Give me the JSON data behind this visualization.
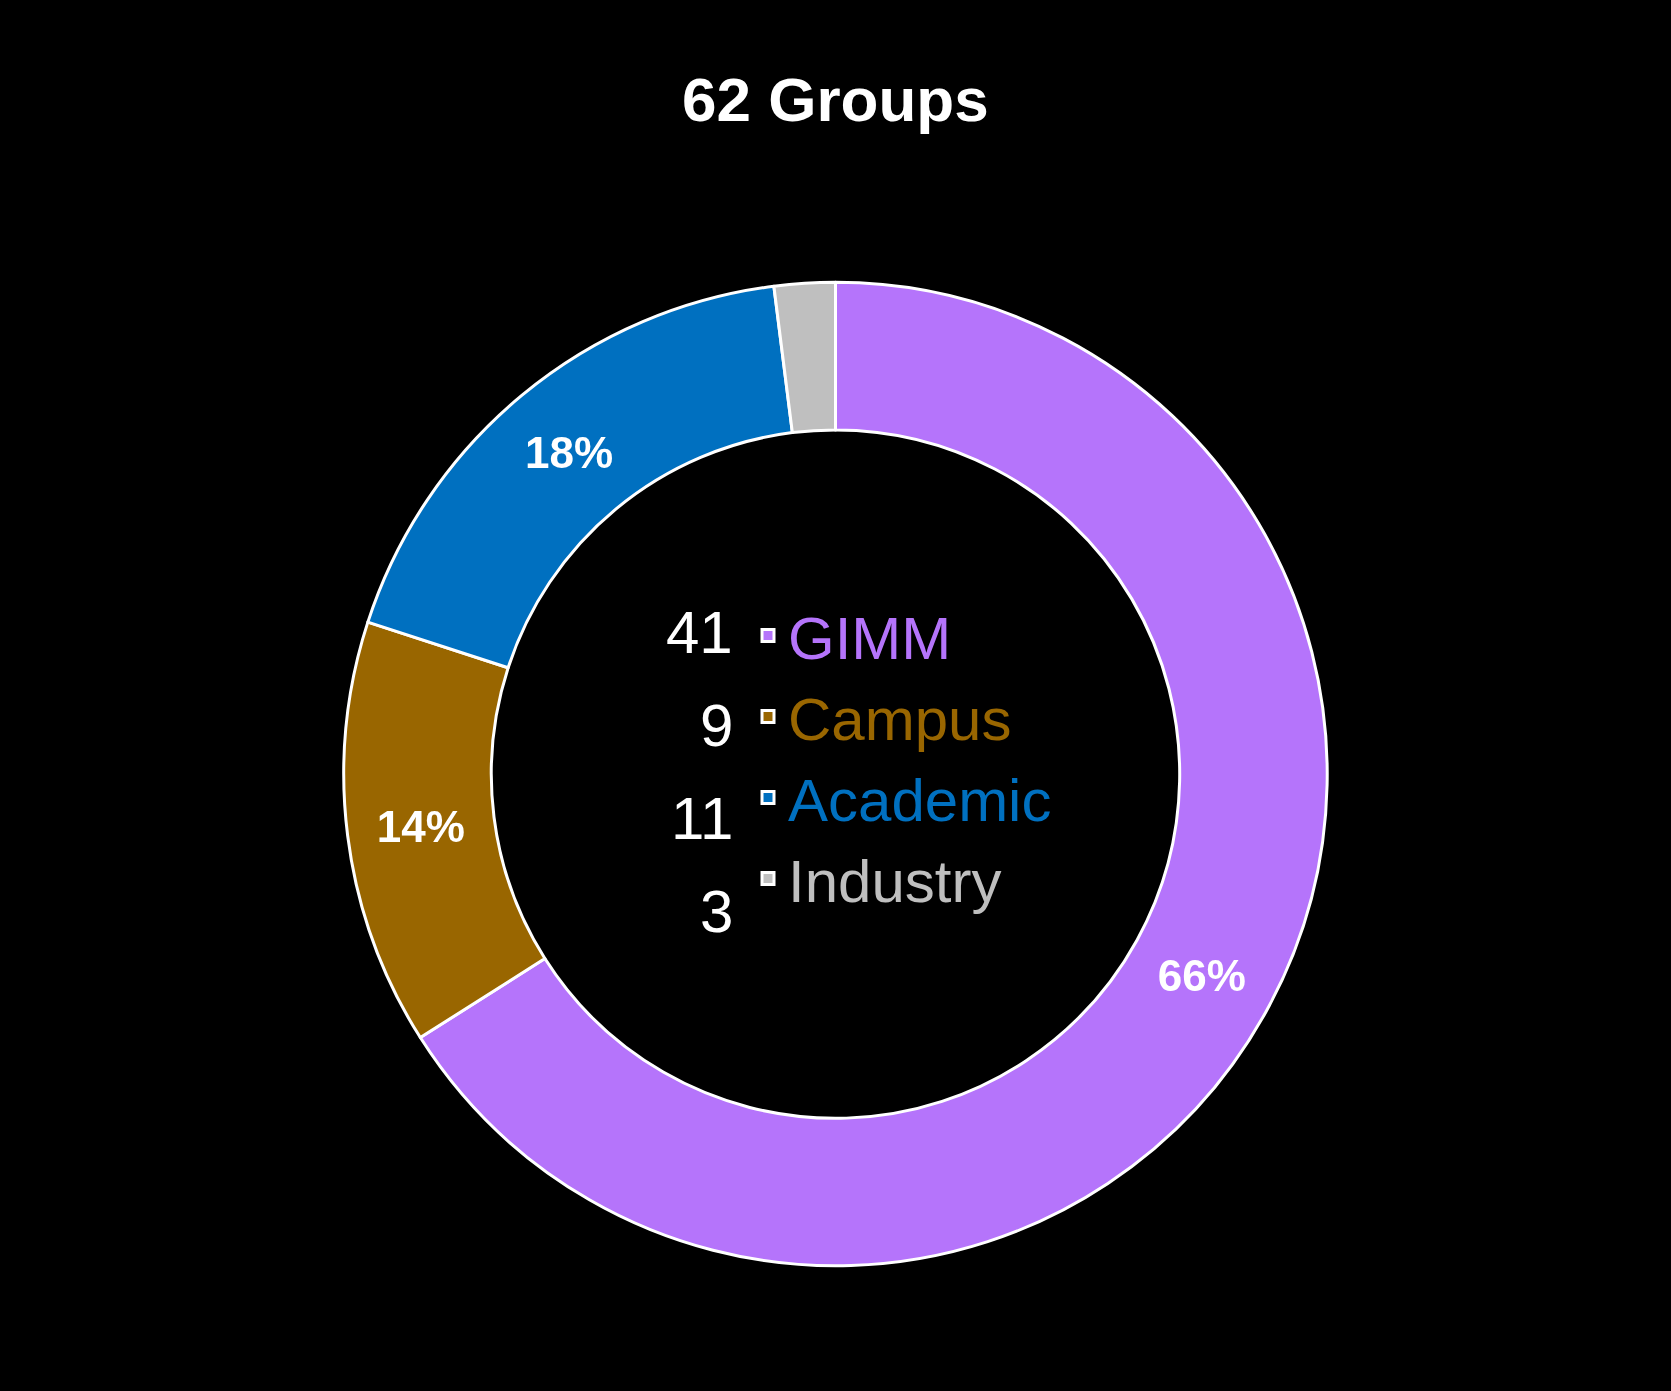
{
  "chart_data": {
    "type": "donut",
    "title": "62 Groups",
    "categories": [
      "GIMM",
      "Campus",
      "Academic",
      "Industry"
    ],
    "values": [
      66,
      14,
      18,
      2
    ],
    "colors": [
      "#b574fb",
      "#996600",
      "#0070c0",
      "#bfbfbf"
    ],
    "value_labels": [
      "66%",
      "14%",
      "18%",
      null
    ],
    "annotations": [
      "41",
      "9",
      "11",
      "3"
    ],
    "legend": "center"
  }
}
